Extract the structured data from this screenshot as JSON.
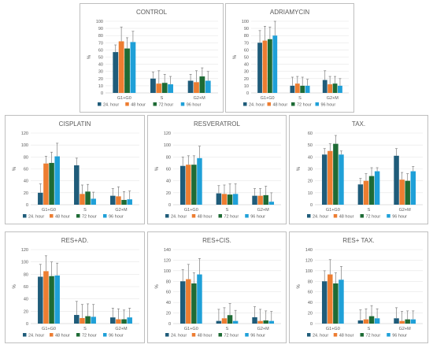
{
  "legend_labels": [
    "24. hour",
    "48 hour",
    "72 hour",
    "96 hour"
  ],
  "series_colors": [
    "#1f5c7a",
    "#ed7d31",
    "#1e6b35",
    "#1fa0d8"
  ],
  "chart_data": [
    {
      "type": "bar",
      "title": "CONTROL",
      "ylabel": "%",
      "ylim": [
        0,
        100
      ],
      "yticks": [
        0,
        10,
        20,
        30,
        40,
        50,
        60,
        70,
        80,
        90,
        100
      ],
      "categories": [
        "G1+G0",
        "S",
        "G2+M"
      ],
      "legend": "bottom",
      "error_bars": true,
      "series": [
        {
          "name": "24. hour",
          "values": [
            57,
            20,
            17
          ],
          "errors": [
            10,
            9,
            9
          ]
        },
        {
          "name": "48 hour",
          "values": [
            72,
            13,
            15
          ],
          "errors": [
            20,
            18,
            16
          ]
        },
        {
          "name": "72 hour",
          "values": [
            62,
            14,
            23
          ],
          "errors": [
            15,
            12,
            12
          ]
        },
        {
          "name": "96 hour",
          "values": [
            71,
            12,
            17
          ],
          "errors": [
            15,
            11,
            13
          ]
        }
      ]
    },
    {
      "type": "bar",
      "title": "ADRIAMYCIN",
      "ylabel": "%",
      "ylim": [
        0,
        100
      ],
      "yticks": [
        0,
        10,
        20,
        30,
        40,
        50,
        60,
        70,
        80,
        90,
        100
      ],
      "categories": [
        "G1+G0",
        "S",
        "G2+M"
      ],
      "legend": "bottom",
      "error_bars": true,
      "series": [
        {
          "name": "24. hour",
          "values": [
            70,
            10,
            18
          ],
          "errors": [
            17,
            12,
            13
          ]
        },
        {
          "name": "48 hour",
          "values": [
            73,
            13,
            12
          ],
          "errors": [
            20,
            10,
            11
          ]
        },
        {
          "name": "72 hour",
          "values": [
            75,
            10,
            13
          ],
          "errors": [
            17,
            12,
            10
          ]
        },
        {
          "name": "96 hour",
          "values": [
            80,
            10,
            10
          ],
          "errors": [
            21,
            9,
            10
          ]
        }
      ]
    },
    {
      "type": "bar",
      "title": "CISPLATIN",
      "ylabel": "%",
      "ylim": [
        0,
        120
      ],
      "yticks": [
        0,
        20,
        40,
        60,
        80,
        100,
        120
      ],
      "categories": [
        "G1+G0",
        "S",
        "G2+M"
      ],
      "legend": "bottom",
      "error_bars": true,
      "series": [
        {
          "name": "24. hour",
          "values": [
            20,
            66,
            15
          ],
          "errors": [
            15,
            12,
            12
          ]
        },
        {
          "name": "48 hour",
          "values": [
            69,
            18,
            14
          ],
          "errors": [
            12,
            15,
            16
          ]
        },
        {
          "name": "72 hour",
          "values": [
            70,
            22,
            8
          ],
          "errors": [
            18,
            12,
            14
          ]
        },
        {
          "name": "96 hour",
          "values": [
            81,
            10,
            9
          ],
          "errors": [
            22,
            11,
            14
          ]
        }
      ]
    },
    {
      "type": "bar",
      "title": "RESVERATROL",
      "ylabel": "%",
      "ylim": [
        0,
        120
      ],
      "yticks": [
        0,
        20,
        40,
        60,
        80,
        100,
        120
      ],
      "categories": [
        "G1+G0",
        "S",
        "G2+M"
      ],
      "legend": "bottom",
      "error_bars": true,
      "series": [
        {
          "name": "24. hour",
          "values": [
            65,
            19,
            15
          ],
          "errors": [
            15,
            13,
            12
          ]
        },
        {
          "name": "48 hour",
          "values": [
            67,
            18,
            15
          ],
          "errors": [
            15,
            15,
            12
          ]
        },
        {
          "name": "72 hour",
          "values": [
            67,
            17,
            16
          ],
          "errors": [
            15,
            18,
            15
          ]
        },
        {
          "name": "96 hour",
          "values": [
            78,
            18,
            5
          ],
          "errors": [
            20,
            17,
            15
          ]
        }
      ]
    },
    {
      "type": "bar",
      "title": "TAX.",
      "ylabel": "%",
      "ylim": [
        0,
        60
      ],
      "yticks": [
        0,
        10,
        20,
        30,
        40,
        50,
        60
      ],
      "categories": [
        "G1+G0",
        "S",
        "G2+M"
      ],
      "legend": "bottom",
      "error_bars": true,
      "series": [
        {
          "name": "24. hour",
          "values": [
            42,
            17,
            41
          ],
          "errors": [
            5,
            5,
            6
          ]
        },
        {
          "name": "48 hour",
          "values": [
            45,
            20,
            21
          ],
          "errors": [
            6,
            6,
            6
          ]
        },
        {
          "name": "72 hour",
          "values": [
            51,
            24,
            20
          ],
          "errors": [
            7,
            7,
            6
          ]
        },
        {
          "name": "96 hour",
          "values": [
            42,
            28,
            28
          ],
          "errors": [
            3,
            3,
            4
          ]
        }
      ]
    },
    {
      "type": "bar",
      "title": "RES+AD.",
      "ylabel": "%",
      "ylim": [
        0,
        120
      ],
      "yticks": [
        0,
        20,
        40,
        60,
        80,
        100,
        120
      ],
      "categories": [
        "G1+G0",
        "S",
        "G2+M"
      ],
      "legend": "bottom",
      "error_bars": true,
      "series": [
        {
          "name": "24. hour",
          "values": [
            76,
            14,
            10
          ],
          "errors": [
            20,
            22,
            15
          ]
        },
        {
          "name": "48 hour",
          "values": [
            85,
            9,
            7
          ],
          "errors": [
            25,
            22,
            17
          ]
        },
        {
          "name": "72 hour",
          "values": [
            77,
            12,
            7
          ],
          "errors": [
            23,
            20,
            15
          ]
        },
        {
          "name": "96 hour",
          "values": [
            78,
            11,
            10
          ],
          "errors": [
            20,
            20,
            15
          ]
        }
      ]
    },
    {
      "type": "bar",
      "title": "RES+CIS.",
      "ylabel": "%",
      "ylim": [
        0,
        140
      ],
      "yticks": [
        0,
        20,
        40,
        60,
        80,
        100,
        120,
        140
      ],
      "categories": [
        "G1+G0",
        "S",
        "G2+M"
      ],
      "legend": "bottom",
      "error_bars": true,
      "series": [
        {
          "name": "24. hour",
          "values": [
            80,
            5,
            12
          ],
          "errors": [
            22,
            22,
            20
          ]
        },
        {
          "name": "48 hour",
          "values": [
            84,
            10,
            5
          ],
          "errors": [
            28,
            20,
            22
          ]
        },
        {
          "name": "72 hour",
          "values": [
            76,
            16,
            6
          ],
          "errors": [
            20,
            22,
            18
          ]
        },
        {
          "name": "96 hour",
          "values": [
            93,
            5,
            5
          ],
          "errors": [
            30,
            20,
            18
          ]
        }
      ]
    },
    {
      "type": "bar",
      "title": "RES+ TAX.",
      "ylabel": "%",
      "ylim": [
        0,
        140
      ],
      "yticks": [
        0,
        20,
        40,
        60,
        80,
        100,
        120,
        140
      ],
      "categories": [
        "G1+G0",
        "S",
        "G2+M"
      ],
      "legend": "bottom",
      "error_bars": true,
      "series": [
        {
          "name": "24. hour",
          "values": [
            80,
            6,
            10
          ],
          "errors": [
            20,
            20,
            20
          ]
        },
        {
          "name": "48 hour",
          "values": [
            93,
            8,
            5
          ],
          "errors": [
            28,
            20,
            18
          ]
        },
        {
          "name": "72 hour",
          "values": [
            76,
            14,
            8
          ],
          "errors": [
            20,
            20,
            16
          ]
        },
        {
          "name": "96 hour",
          "values": [
            83,
            10,
            8
          ],
          "errors": [
            25,
            18,
            16
          ]
        }
      ]
    }
  ]
}
